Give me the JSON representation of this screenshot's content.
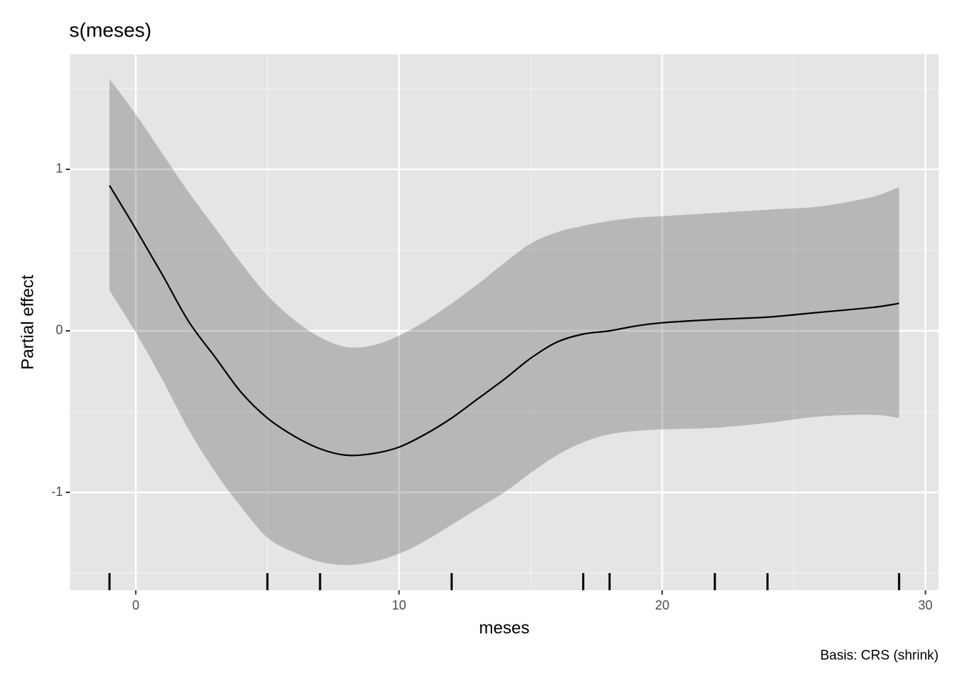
{
  "chart_data": {
    "type": "line",
    "title": "s(meses)",
    "xlabel": "meses",
    "ylabel": "Partial effect",
    "caption": "Basis: CRS (shrink)",
    "x": [
      -1,
      0,
      1,
      2,
      3,
      4,
      5,
      6,
      7,
      8,
      9,
      10,
      11,
      12,
      13,
      14,
      15,
      16,
      17,
      18,
      19,
      20,
      22,
      24,
      26,
      28,
      29
    ],
    "fit": [
      0.9,
      0.63,
      0.35,
      0.06,
      -0.16,
      -0.38,
      -0.54,
      -0.65,
      -0.73,
      -0.77,
      -0.76,
      -0.72,
      -0.64,
      -0.54,
      -0.42,
      -0.3,
      -0.17,
      -0.07,
      -0.02,
      0.0,
      0.03,
      0.05,
      0.07,
      0.085,
      0.115,
      0.145,
      0.17
    ],
    "upper": [
      1.56,
      1.34,
      1.1,
      0.86,
      0.64,
      0.42,
      0.22,
      0.07,
      -0.04,
      -0.1,
      -0.09,
      -0.03,
      0.06,
      0.17,
      0.29,
      0.42,
      0.54,
      0.61,
      0.65,
      0.68,
      0.7,
      0.71,
      0.73,
      0.75,
      0.77,
      0.83,
      0.89
    ],
    "lower": [
      0.25,
      -0.01,
      -0.3,
      -0.61,
      -0.87,
      -1.09,
      -1.28,
      -1.37,
      -1.43,
      -1.45,
      -1.43,
      -1.38,
      -1.3,
      -1.2,
      -1.1,
      -1.0,
      -0.88,
      -0.77,
      -0.69,
      -0.64,
      -0.62,
      -0.61,
      -0.6,
      -0.57,
      -0.53,
      -0.52,
      -0.54
    ],
    "rug": [
      -1,
      5,
      7,
      12,
      17,
      18,
      22,
      24,
      29
    ],
    "line_color": "#000000",
    "ribbon_color": "rgba(0,0,0,0.2)",
    "xlim": [
      -2.5,
      30.5
    ],
    "ylim": [
      -1.606,
      1.712
    ],
    "xticks": [
      0,
      10,
      20,
      30
    ],
    "yticks": [
      -1,
      0,
      1
    ],
    "minor_xticks": [
      5,
      15,
      25
    ],
    "minor_yticks": [
      -1.5,
      -0.5,
      0.5,
      1.5
    ],
    "grid": true
  }
}
